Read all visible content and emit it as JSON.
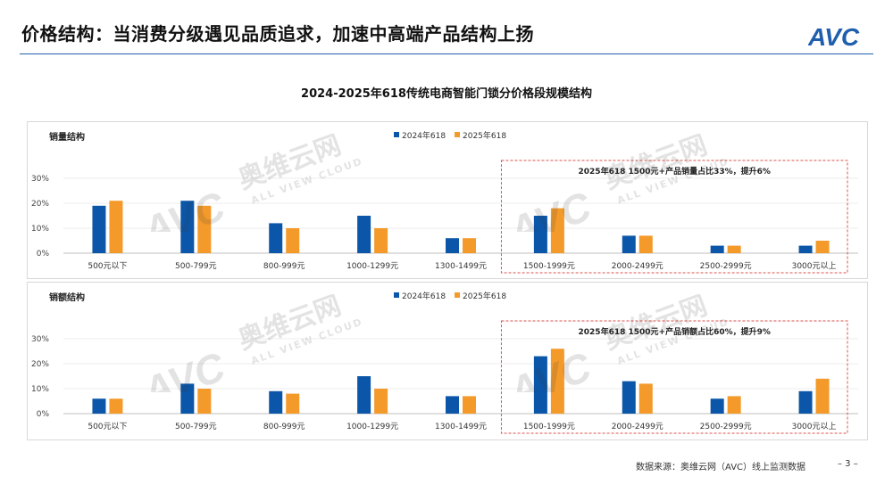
{
  "header": {
    "title": "价格结构：当消费分级遇见品质追求，加速中高端产品结构上扬",
    "logo_text": "AVC"
  },
  "chart_title": "2024-2025年618传统电商智能门锁分价格段规模结构",
  "colors": {
    "series_2024": "#0b56a8",
    "series_2025": "#f39a2b",
    "accent": "#1f5fae",
    "annotation": "#d9534f"
  },
  "chart_data": [
    {
      "type": "bar",
      "panel_label": "销量结构",
      "categories": [
        "500元以下",
        "500-799元",
        "800-999元",
        "1000-1299元",
        "1300-1499元",
        "1500-1999元",
        "2000-2499元",
        "2500-2999元",
        "3000元以上"
      ],
      "series": [
        {
          "name": "2024年618",
          "values": [
            19,
            21,
            12,
            15,
            6,
            15,
            7,
            3,
            3
          ]
        },
        {
          "name": "2025年618",
          "values": [
            21,
            19,
            10,
            10,
            6,
            18,
            7,
            3,
            5
          ]
        }
      ],
      "y_ticks": [
        "0%",
        "10%",
        "20%",
        "30%"
      ],
      "ylim": [
        0,
        30
      ],
      "legend_position": "top-center",
      "annotation": "2025年618  1500元+产品销量占比33%，提升6%",
      "highlight_categories": [
        5,
        8
      ]
    },
    {
      "type": "bar",
      "panel_label": "销额结构",
      "categories": [
        "500元以下",
        "500-799元",
        "800-999元",
        "1000-1299元",
        "1300-1499元",
        "1500-1999元",
        "2000-2499元",
        "2500-2999元",
        "3000元以上"
      ],
      "series": [
        {
          "name": "2024年618",
          "values": [
            6,
            12,
            9,
            15,
            7,
            23,
            13,
            6,
            9
          ]
        },
        {
          "name": "2025年618",
          "values": [
            6,
            10,
            8,
            10,
            7,
            26,
            12,
            7,
            14
          ]
        }
      ],
      "y_ticks": [
        "0%",
        "10%",
        "20%",
        "30%"
      ],
      "ylim": [
        0,
        30
      ],
      "legend_position": "top-center",
      "annotation": "2025年618  1500元+产品销额占比60%，提升9%",
      "highlight_categories": [
        5,
        8
      ]
    }
  ],
  "watermark": {
    "brand": "AVC",
    "cn": "奥维云网",
    "en": "ALL VIEW CLOUD"
  },
  "footer": {
    "source": "数据来源：奥维云网（AVC）线上监测数据",
    "page": "– 3 –"
  }
}
